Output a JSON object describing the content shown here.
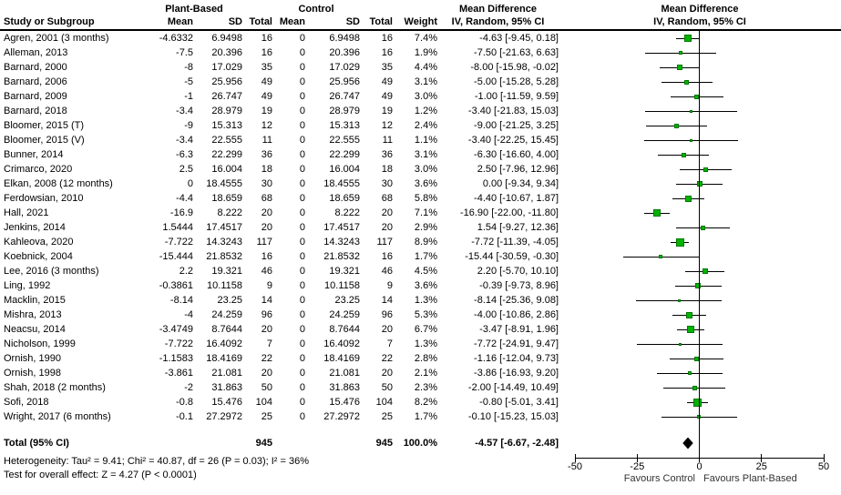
{
  "header": {
    "study_col": "Study or Subgroup",
    "group1": "Plant-Based",
    "group2": "Control",
    "cols": [
      "Mean",
      "SD",
      "Total",
      "Mean",
      "SD",
      "Total",
      "Weight"
    ],
    "md_text_title1": "Mean Difference",
    "md_text_title2": "IV, Random, 95% CI",
    "md_plot_title1": "Mean Difference",
    "md_plot_title2": "IV, Random, 95% CI"
  },
  "chart_data": {
    "type": "forest",
    "effect_measure": "Mean Difference, IV, Random, 95% CI",
    "colors": {
      "marker_fill": "#00b400",
      "marker_border": "#007700",
      "line": "#000000",
      "diamond": "#000000"
    },
    "studies": [
      {
        "name": "Agren, 2001 (3 months)",
        "pb_mean": "-4.6332",
        "pb_sd": "6.9498",
        "pb_total": "16",
        "c_mean": "0",
        "c_sd": "6.9498",
        "c_total": "16",
        "weight": "7.4%",
        "ci": "-4.63 [-9.45, 0.18]"
      },
      {
        "name": "Alleman, 2013",
        "pb_mean": "-7.5",
        "pb_sd": "20.396",
        "pb_total": "16",
        "c_mean": "0",
        "c_sd": "20.396",
        "c_total": "16",
        "weight": "1.9%",
        "ci": "-7.50 [-21.63, 6.63]"
      },
      {
        "name": "Barnard, 2000",
        "pb_mean": "-8",
        "pb_sd": "17.029",
        "pb_total": "35",
        "c_mean": "0",
        "c_sd": "17.029",
        "c_total": "35",
        "weight": "4.4%",
        "ci": "-8.00 [-15.98, -0.02]"
      },
      {
        "name": "Barnard, 2006",
        "pb_mean": "-5",
        "pb_sd": "25.956",
        "pb_total": "49",
        "c_mean": "0",
        "c_sd": "25.956",
        "c_total": "49",
        "weight": "3.1%",
        "ci": "-5.00 [-15.28, 5.28]"
      },
      {
        "name": "Barnard, 2009",
        "pb_mean": "-1",
        "pb_sd": "26.747",
        "pb_total": "49",
        "c_mean": "0",
        "c_sd": "26.747",
        "c_total": "49",
        "weight": "3.0%",
        "ci": "-1.00 [-11.59, 9.59]"
      },
      {
        "name": "Barnard, 2018",
        "pb_mean": "-3.4",
        "pb_sd": "28.979",
        "pb_total": "19",
        "c_mean": "0",
        "c_sd": "28.979",
        "c_total": "19",
        "weight": "1.2%",
        "ci": "-3.40 [-21.83, 15.03]"
      },
      {
        "name": "Bloomer, 2015 (T)",
        "pb_mean": "-9",
        "pb_sd": "15.313",
        "pb_total": "12",
        "c_mean": "0",
        "c_sd": "15.313",
        "c_total": "12",
        "weight": "2.4%",
        "ci": "-9.00 [-21.25, 3.25]"
      },
      {
        "name": "Bloomer, 2015 (V)",
        "pb_mean": "-3.4",
        "pb_sd": "22.555",
        "pb_total": "11",
        "c_mean": "0",
        "c_sd": "22.555",
        "c_total": "11",
        "weight": "1.1%",
        "ci": "-3.40 [-22.25, 15.45]"
      },
      {
        "name": "Bunner, 2014",
        "pb_mean": "-6.3",
        "pb_sd": "22.299",
        "pb_total": "36",
        "c_mean": "0",
        "c_sd": "22.299",
        "c_total": "36",
        "weight": "3.1%",
        "ci": "-6.30 [-16.60, 4.00]"
      },
      {
        "name": "Crimarco, 2020",
        "pb_mean": "2.5",
        "pb_sd": "16.004",
        "pb_total": "18",
        "c_mean": "0",
        "c_sd": "16.004",
        "c_total": "18",
        "weight": "3.0%",
        "ci": "2.50 [-7.96, 12.96]"
      },
      {
        "name": "Elkan, 2008 (12 months)",
        "pb_mean": "0",
        "pb_sd": "18.4555",
        "pb_total": "30",
        "c_mean": "0",
        "c_sd": "18.4555",
        "c_total": "30",
        "weight": "3.6%",
        "ci": "0.00 [-9.34, 9.34]"
      },
      {
        "name": "Ferdowsian, 2010",
        "pb_mean": "-4.4",
        "pb_sd": "18.659",
        "pb_total": "68",
        "c_mean": "0",
        "c_sd": "18.659",
        "c_total": "68",
        "weight": "5.8%",
        "ci": "-4.40 [-10.67, 1.87]"
      },
      {
        "name": "Hall, 2021",
        "pb_mean": "-16.9",
        "pb_sd": "8.222",
        "pb_total": "20",
        "c_mean": "0",
        "c_sd": "8.222",
        "c_total": "20",
        "weight": "7.1%",
        "ci": "-16.90 [-22.00, -11.80]"
      },
      {
        "name": "Jenkins, 2014",
        "pb_mean": "1.5444",
        "pb_sd": "17.4517",
        "pb_total": "20",
        "c_mean": "0",
        "c_sd": "17.4517",
        "c_total": "20",
        "weight": "2.9%",
        "ci": "1.54 [-9.27, 12.36]"
      },
      {
        "name": "Kahleova, 2020",
        "pb_mean": "-7.722",
        "pb_sd": "14.3243",
        "pb_total": "117",
        "c_mean": "0",
        "c_sd": "14.3243",
        "c_total": "117",
        "weight": "8.9%",
        "ci": "-7.72 [-11.39, -4.05]"
      },
      {
        "name": "Koebnick, 2004",
        "pb_mean": "-15.444",
        "pb_sd": "21.8532",
        "pb_total": "16",
        "c_mean": "0",
        "c_sd": "21.8532",
        "c_total": "16",
        "weight": "1.7%",
        "ci": "-15.44 [-30.59, -0.30]"
      },
      {
        "name": "Lee, 2016 (3 months)",
        "pb_mean": "2.2",
        "pb_sd": "19.321",
        "pb_total": "46",
        "c_mean": "0",
        "c_sd": "19.321",
        "c_total": "46",
        "weight": "4.5%",
        "ci": "2.20 [-5.70, 10.10]"
      },
      {
        "name": "Ling, 1992",
        "pb_mean": "-0.3861",
        "pb_sd": "10.1158",
        "pb_total": "9",
        "c_mean": "0",
        "c_sd": "10.1158",
        "c_total": "9",
        "weight": "3.6%",
        "ci": "-0.39 [-9.73, 8.96]"
      },
      {
        "name": "Macklin, 2015",
        "pb_mean": "-8.14",
        "pb_sd": "23.25",
        "pb_total": "14",
        "c_mean": "0",
        "c_sd": "23.25",
        "c_total": "14",
        "weight": "1.3%",
        "ci": "-8.14 [-25.36, 9.08]"
      },
      {
        "name": "Mishra, 2013",
        "pb_mean": "-4",
        "pb_sd": "24.259",
        "pb_total": "96",
        "c_mean": "0",
        "c_sd": "24.259",
        "c_total": "96",
        "weight": "5.3%",
        "ci": "-4.00 [-10.86, 2.86]"
      },
      {
        "name": "Neacsu, 2014",
        "pb_mean": "-3.4749",
        "pb_sd": "8.7644",
        "pb_total": "20",
        "c_mean": "0",
        "c_sd": "8.7644",
        "c_total": "20",
        "weight": "6.7%",
        "ci": "-3.47 [-8.91, 1.96]"
      },
      {
        "name": "Nicholson, 1999",
        "pb_mean": "-7.722",
        "pb_sd": "16.4092",
        "pb_total": "7",
        "c_mean": "0",
        "c_sd": "16.4092",
        "c_total": "7",
        "weight": "1.3%",
        "ci": "-7.72 [-24.91, 9.47]"
      },
      {
        "name": "Ornish, 1990",
        "pb_mean": "-1.1583",
        "pb_sd": "18.4169",
        "pb_total": "22",
        "c_mean": "0",
        "c_sd": "18.4169",
        "c_total": "22",
        "weight": "2.8%",
        "ci": "-1.16 [-12.04, 9.73]"
      },
      {
        "name": "Ornish, 1998",
        "pb_mean": "-3.861",
        "pb_sd": "21.081",
        "pb_total": "20",
        "c_mean": "0",
        "c_sd": "21.081",
        "c_total": "20",
        "weight": "2.1%",
        "ci": "-3.86 [-16.93, 9.20]"
      },
      {
        "name": "Shah, 2018 (2 months)",
        "pb_mean": "-2",
        "pb_sd": "31.863",
        "pb_total": "50",
        "c_mean": "0",
        "c_sd": "31.863",
        "c_total": "50",
        "weight": "2.3%",
        "ci": "-2.00 [-14.49, 10.49]"
      },
      {
        "name": "Sofi, 2018",
        "pb_mean": "-0.8",
        "pb_sd": "15.476",
        "pb_total": "104",
        "c_mean": "0",
        "c_sd": "15.476",
        "c_total": "104",
        "weight": "8.2%",
        "ci": "-0.80 [-5.01, 3.41]"
      },
      {
        "name": "Wright, 2017 (6 months)",
        "pb_mean": "-0.1",
        "pb_sd": "27.2972",
        "pb_total": "25",
        "c_mean": "0",
        "c_sd": "27.2972",
        "c_total": "25",
        "weight": "1.7%",
        "ci": "-0.10 [-15.23, 15.03]"
      }
    ],
    "total": {
      "name": "Total (95% CI)",
      "pb_total": "945",
      "c_total": "945",
      "weight": "100.0%",
      "ci": "-4.57 [-6.67, -2.48]"
    },
    "heterogeneity": "Heterogeneity: Tau² = 9.41; Chi² = 40.87, df = 26 (P = 0.03); I² = 36%",
    "overall_effect": "Test for overall effect: Z = 4.27 (P < 0.0001)",
    "axis": {
      "xlim": [
        -50,
        50
      ],
      "ticks": [
        -50,
        -25,
        0,
        25,
        50
      ],
      "tick_labels": [
        "-50",
        "-25",
        "0",
        "25",
        "50"
      ],
      "favours_left": "Favours Control",
      "favours_right": "Favours Plant-Based"
    }
  }
}
